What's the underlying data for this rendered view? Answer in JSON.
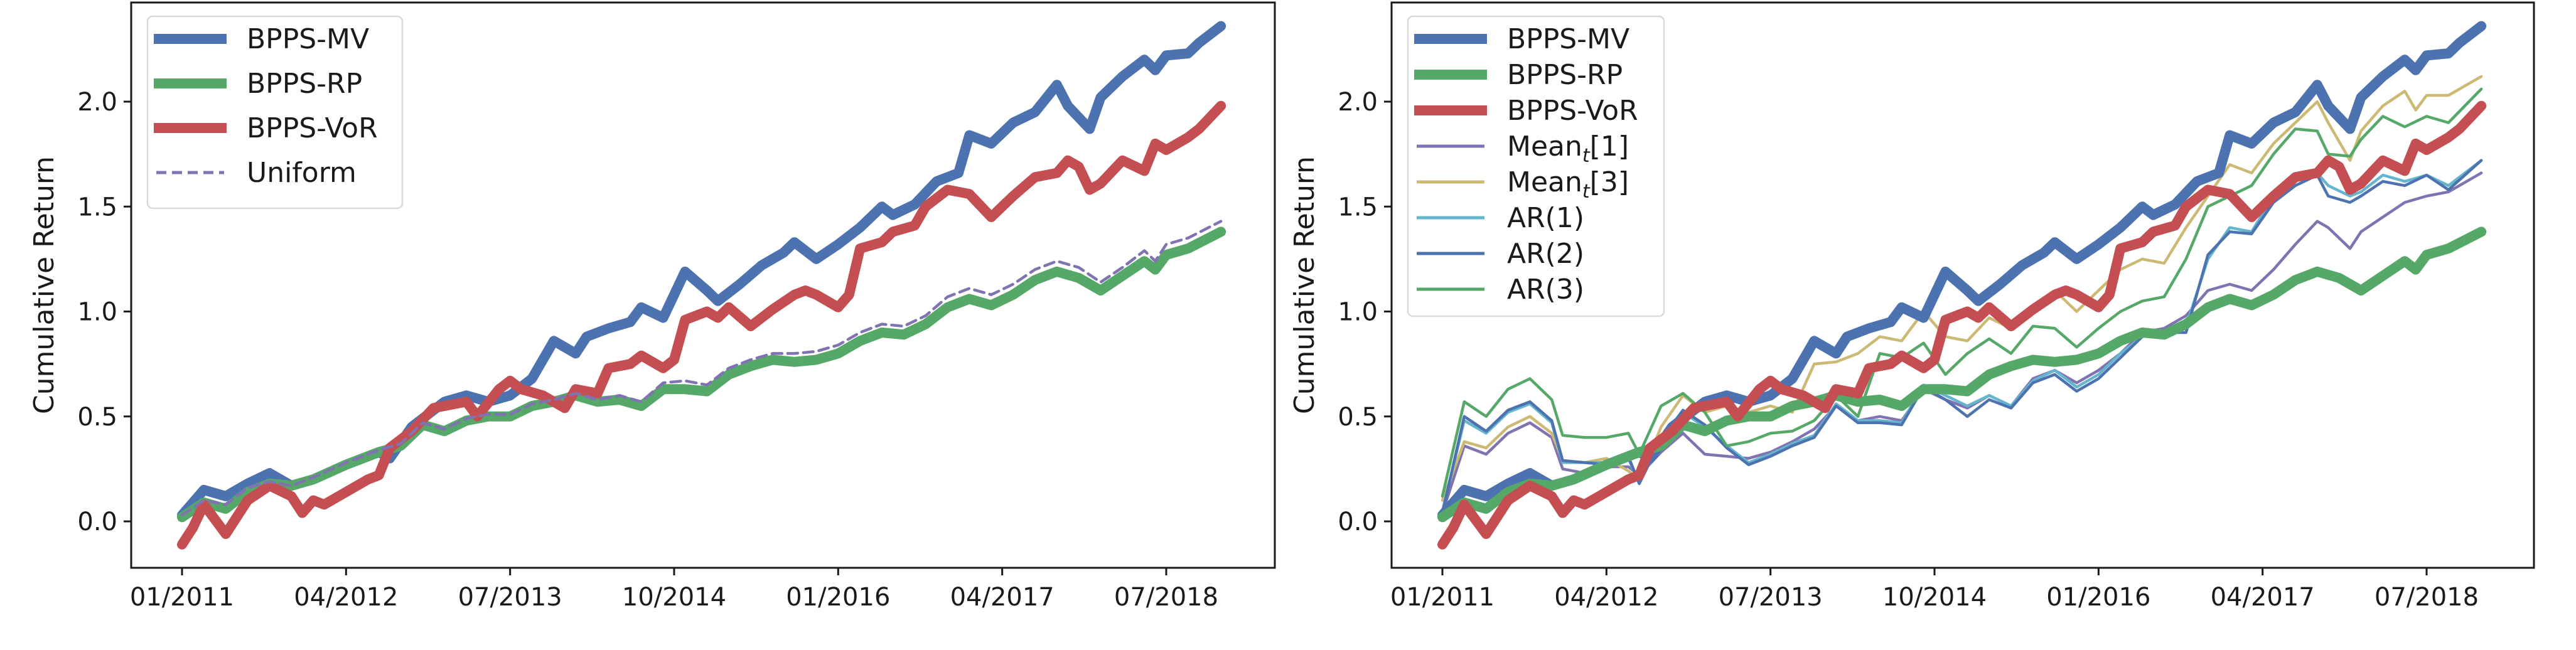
{
  "chart_data": [
    {
      "type": "line",
      "title": "",
      "xlabel": "",
      "ylabel": "Cumulative Return",
      "x_unit": "months since 01/2011",
      "xticks": [
        0,
        15,
        30,
        45,
        60,
        75,
        90
      ],
      "xtick_labels": [
        "01/2011",
        "04/2012",
        "07/2013",
        "10/2014",
        "01/2016",
        "04/2017",
        "07/2018"
      ],
      "xlim": [
        -4,
        98
      ],
      "yticks": [
        0.0,
        0.5,
        1.0,
        1.5,
        2.0
      ],
      "ytick_labels": [
        "0.0",
        "0.5",
        "1.0",
        "1.5",
        "2.0"
      ],
      "ylim": [
        -0.22,
        2.48
      ],
      "grid": false,
      "legend": "top-left",
      "series": [
        {
          "name": "BPPS-MV",
          "color": "#4c72b0",
          "style": "thick",
          "x": [
            0,
            2,
            4,
            6,
            8,
            10,
            12,
            15,
            18,
            19,
            21,
            24,
            26,
            28,
            30,
            32,
            34,
            36,
            37,
            39,
            41,
            42,
            44,
            46,
            48,
            49,
            51,
            53,
            55,
            56,
            58,
            60,
            62,
            64,
            65,
            67,
            69,
            71,
            72,
            74,
            76,
            78,
            80,
            81,
            83,
            84,
            86,
            88,
            89,
            90,
            92,
            93,
            95
          ],
          "y": [
            0.03,
            0.15,
            0.12,
            0.18,
            0.23,
            0.17,
            0.2,
            0.27,
            0.33,
            0.3,
            0.45,
            0.57,
            0.6,
            0.57,
            0.6,
            0.68,
            0.86,
            0.8,
            0.88,
            0.92,
            0.95,
            1.02,
            0.97,
            1.19,
            1.1,
            1.05,
            1.13,
            1.22,
            1.28,
            1.33,
            1.25,
            1.32,
            1.4,
            1.5,
            1.46,
            1.51,
            1.62,
            1.66,
            1.84,
            1.8,
            1.9,
            1.95,
            2.08,
            1.98,
            1.87,
            2.02,
            2.12,
            2.2,
            2.15,
            2.22,
            2.23,
            2.28,
            2.36
          ]
        },
        {
          "name": "BPPS-RP",
          "color": "#55a868",
          "style": "thick",
          "x": [
            0,
            2,
            4,
            6,
            8,
            10,
            12,
            15,
            18,
            20,
            22,
            24,
            26,
            28,
            30,
            32,
            34,
            36,
            38,
            40,
            42,
            44,
            46,
            48,
            50,
            52,
            54,
            56,
            58,
            60,
            62,
            64,
            66,
            68,
            70,
            72,
            74,
            76,
            78,
            80,
            82,
            84,
            86,
            88,
            89,
            90,
            92,
            95
          ],
          "y": [
            0.02,
            0.09,
            0.06,
            0.14,
            0.18,
            0.17,
            0.2,
            0.27,
            0.33,
            0.36,
            0.46,
            0.43,
            0.48,
            0.5,
            0.5,
            0.55,
            0.57,
            0.6,
            0.57,
            0.58,
            0.55,
            0.63,
            0.63,
            0.62,
            0.7,
            0.74,
            0.77,
            0.76,
            0.77,
            0.8,
            0.86,
            0.9,
            0.89,
            0.94,
            1.02,
            1.06,
            1.03,
            1.08,
            1.15,
            1.19,
            1.16,
            1.1,
            1.17,
            1.24,
            1.2,
            1.27,
            1.3,
            1.38
          ]
        },
        {
          "name": "BPPS-VoR",
          "color": "#c44e52",
          "style": "thick",
          "x": [
            0,
            1,
            2,
            4,
            6,
            8,
            10,
            11,
            12,
            13,
            15,
            17,
            18,
            19,
            21,
            23,
            25,
            26,
            27,
            29,
            30,
            31,
            33,
            35,
            36,
            38,
            39,
            41,
            42,
            44,
            45,
            46,
            48,
            49,
            50,
            52,
            54,
            56,
            57,
            58,
            60,
            61,
            62,
            64,
            65,
            67,
            68,
            70,
            71,
            72,
            74,
            76,
            78,
            80,
            81,
            82,
            83,
            84,
            86,
            88,
            89,
            90,
            92,
            93,
            95
          ],
          "y": [
            -0.11,
            -0.03,
            0.08,
            -0.06,
            0.1,
            0.17,
            0.12,
            0.04,
            0.1,
            0.08,
            0.14,
            0.2,
            0.22,
            0.35,
            0.43,
            0.54,
            0.56,
            0.57,
            0.5,
            0.63,
            0.67,
            0.63,
            0.6,
            0.54,
            0.63,
            0.61,
            0.73,
            0.75,
            0.79,
            0.73,
            0.77,
            0.96,
            1.0,
            0.97,
            1.02,
            0.93,
            1.01,
            1.08,
            1.1,
            1.08,
            1.02,
            1.08,
            1.3,
            1.33,
            1.38,
            1.41,
            1.5,
            1.58,
            1.57,
            1.56,
            1.45,
            1.55,
            1.64,
            1.66,
            1.72,
            1.69,
            1.58,
            1.61,
            1.72,
            1.67,
            1.8,
            1.77,
            1.83,
            1.87,
            1.98
          ]
        },
        {
          "name": "Uniform",
          "color": "#8172b2",
          "style": "dashed",
          "x": [
            0,
            2,
            4,
            6,
            8,
            10,
            12,
            15,
            18,
            20,
            22,
            24,
            26,
            28,
            30,
            32,
            34,
            36,
            38,
            40,
            42,
            44,
            46,
            48,
            50,
            52,
            54,
            56,
            58,
            60,
            62,
            64,
            66,
            68,
            70,
            72,
            74,
            76,
            78,
            80,
            82,
            84,
            86,
            88,
            89,
            90,
            92,
            95
          ],
          "y": [
            0.03,
            0.1,
            0.08,
            0.16,
            0.19,
            0.17,
            0.21,
            0.28,
            0.34,
            0.37,
            0.47,
            0.44,
            0.49,
            0.51,
            0.51,
            0.56,
            0.58,
            0.61,
            0.58,
            0.6,
            0.57,
            0.66,
            0.67,
            0.65,
            0.73,
            0.77,
            0.8,
            0.8,
            0.81,
            0.84,
            0.9,
            0.94,
            0.93,
            0.98,
            1.07,
            1.11,
            1.08,
            1.13,
            1.2,
            1.24,
            1.21,
            1.14,
            1.21,
            1.29,
            1.24,
            1.32,
            1.35,
            1.43
          ]
        }
      ]
    },
    {
      "type": "line",
      "title": "",
      "xlabel": "",
      "ylabel": "Cumulative Return",
      "x_unit": "months since 01/2011",
      "xticks": [
        0,
        15,
        30,
        45,
        60,
        75,
        90
      ],
      "xtick_labels": [
        "01/2011",
        "04/2012",
        "07/2013",
        "10/2014",
        "01/2016",
        "04/2017",
        "07/2018"
      ],
      "xlim": [
        -4,
        98
      ],
      "yticks": [
        0.0,
        0.5,
        1.0,
        1.5,
        2.0
      ],
      "ytick_labels": [
        "0.0",
        "0.5",
        "1.0",
        "1.5",
        "2.0"
      ],
      "ylim": [
        -0.22,
        2.48
      ],
      "grid": false,
      "legend": "top-left",
      "series": [
        {
          "name": "BPPS-MV",
          "color": "#4c72b0",
          "style": "thick",
          "same_as": "left"
        },
        {
          "name": "BPPS-RP",
          "color": "#55a868",
          "style": "thick",
          "same_as": "left"
        },
        {
          "name": "BPPS-VoR",
          "color": "#c44e52",
          "style": "thick",
          "same_as": "left"
        },
        {
          "name": "Mean_t[1]",
          "label_base": "Mean",
          "label_sub": "t",
          "label_tail": "[1]",
          "color": "#8172b2",
          "style": "thin",
          "x": [
            0,
            2,
            4,
            6,
            8,
            10,
            11,
            13,
            15,
            17,
            18,
            20,
            22,
            24,
            26,
            28,
            30,
            32,
            34,
            36,
            38,
            40,
            42,
            44,
            46,
            48,
            50,
            52,
            54,
            56,
            58,
            60,
            62,
            64,
            66,
            68,
            70,
            72,
            74,
            76,
            78,
            80,
            81,
            83,
            84,
            86,
            88,
            90,
            92,
            95
          ],
          "y": [
            0.04,
            0.36,
            0.32,
            0.42,
            0.47,
            0.4,
            0.25,
            0.23,
            0.26,
            0.26,
            0.22,
            0.33,
            0.42,
            0.32,
            0.31,
            0.3,
            0.33,
            0.38,
            0.44,
            0.55,
            0.48,
            0.5,
            0.48,
            0.63,
            0.58,
            0.54,
            0.6,
            0.55,
            0.68,
            0.72,
            0.66,
            0.72,
            0.8,
            0.9,
            0.92,
            0.98,
            1.1,
            1.13,
            1.1,
            1.2,
            1.32,
            1.43,
            1.4,
            1.3,
            1.38,
            1.45,
            1.52,
            1.55,
            1.57,
            1.66
          ]
        },
        {
          "name": "Mean_t[3]",
          "label_base": "Mean",
          "label_sub": "t",
          "label_tail": "[3]",
          "color": "#ccb974",
          "style": "thin",
          "x": [
            0,
            2,
            4,
            6,
            8,
            10,
            11,
            13,
            15,
            17,
            18,
            20,
            22,
            24,
            26,
            28,
            30,
            32,
            34,
            36,
            38,
            40,
            42,
            44,
            46,
            48,
            50,
            52,
            54,
            56,
            58,
            60,
            62,
            64,
            66,
            68,
            70,
            72,
            74,
            76,
            78,
            80,
            81,
            83,
            84,
            86,
            88,
            89,
            90,
            92,
            95
          ],
          "y": [
            0.1,
            0.38,
            0.35,
            0.45,
            0.5,
            0.42,
            0.29,
            0.28,
            0.3,
            0.24,
            0.2,
            0.45,
            0.6,
            0.52,
            0.55,
            0.52,
            0.55,
            0.52,
            0.75,
            0.76,
            0.8,
            0.88,
            0.86,
            1.0,
            0.88,
            0.86,
            0.97,
            0.92,
            1.0,
            1.1,
            1.0,
            1.1,
            1.2,
            1.25,
            1.23,
            1.4,
            1.55,
            1.7,
            1.66,
            1.8,
            1.9,
            2.0,
            1.9,
            1.72,
            1.86,
            1.98,
            2.05,
            1.96,
            2.03,
            2.03,
            2.12
          ]
        },
        {
          "name": "AR(1)",
          "color": "#64b5cd",
          "style": "thin",
          "x": [
            0,
            2,
            4,
            6,
            8,
            10,
            11,
            13,
            15,
            17,
            18,
            20,
            22,
            24,
            26,
            28,
            30,
            32,
            34,
            36,
            38,
            40,
            42,
            44,
            46,
            48,
            50,
            52,
            54,
            56,
            58,
            60,
            62,
            64,
            66,
            68,
            70,
            72,
            74,
            76,
            78,
            80,
            81,
            83,
            84,
            86,
            88,
            90,
            92,
            95
          ],
          "y": [
            0.05,
            0.48,
            0.42,
            0.52,
            0.56,
            0.47,
            0.28,
            0.28,
            0.28,
            0.3,
            0.18,
            0.4,
            0.52,
            0.45,
            0.36,
            0.28,
            0.32,
            0.37,
            0.41,
            0.56,
            0.48,
            0.48,
            0.47,
            0.65,
            0.6,
            0.55,
            0.6,
            0.55,
            0.67,
            0.72,
            0.64,
            0.7,
            0.8,
            0.88,
            0.9,
            0.93,
            1.25,
            1.4,
            1.38,
            1.55,
            1.65,
            1.66,
            1.6,
            1.55,
            1.57,
            1.65,
            1.62,
            1.65,
            1.6,
            1.72
          ]
        },
        {
          "name": "AR(2)",
          "color": "#4c72b0",
          "style": "thin",
          "x": [
            0,
            2,
            4,
            6,
            8,
            10,
            11,
            13,
            15,
            17,
            18,
            20,
            22,
            24,
            26,
            28,
            30,
            32,
            34,
            36,
            38,
            40,
            42,
            44,
            46,
            48,
            50,
            52,
            54,
            56,
            58,
            60,
            62,
            64,
            66,
            68,
            70,
            72,
            74,
            76,
            78,
            80,
            81,
            83,
            84,
            86,
            88,
            90,
            92,
            95
          ],
          "y": [
            0.04,
            0.5,
            0.43,
            0.53,
            0.57,
            0.48,
            0.29,
            0.28,
            0.27,
            0.31,
            0.18,
            0.39,
            0.53,
            0.46,
            0.35,
            0.27,
            0.31,
            0.36,
            0.4,
            0.55,
            0.47,
            0.47,
            0.46,
            0.64,
            0.58,
            0.5,
            0.58,
            0.54,
            0.66,
            0.7,
            0.62,
            0.68,
            0.78,
            0.88,
            0.9,
            0.9,
            1.27,
            1.38,
            1.37,
            1.52,
            1.6,
            1.65,
            1.55,
            1.52,
            1.55,
            1.62,
            1.6,
            1.65,
            1.58,
            1.72
          ]
        },
        {
          "name": "AR(3)",
          "color": "#55a868",
          "style": "thin",
          "x": [
            0,
            2,
            4,
            6,
            8,
            10,
            11,
            13,
            15,
            17,
            18,
            20,
            22,
            24,
            26,
            28,
            30,
            32,
            34,
            36,
            38,
            40,
            42,
            44,
            46,
            48,
            50,
            52,
            54,
            56,
            58,
            60,
            62,
            64,
            66,
            68,
            70,
            72,
            74,
            76,
            78,
            80,
            81,
            83,
            84,
            86,
            88,
            90,
            92,
            95
          ],
          "y": [
            0.12,
            0.57,
            0.5,
            0.63,
            0.68,
            0.58,
            0.41,
            0.4,
            0.4,
            0.42,
            0.32,
            0.55,
            0.61,
            0.52,
            0.36,
            0.38,
            0.42,
            0.43,
            0.48,
            0.6,
            0.5,
            0.8,
            0.78,
            0.85,
            0.7,
            0.8,
            0.87,
            0.8,
            0.93,
            0.92,
            0.83,
            0.92,
            1.0,
            1.05,
            1.07,
            1.25,
            1.5,
            1.55,
            1.6,
            1.75,
            1.87,
            1.86,
            1.75,
            1.74,
            1.82,
            1.93,
            1.88,
            1.93,
            1.9,
            2.06
          ]
        }
      ]
    }
  ]
}
